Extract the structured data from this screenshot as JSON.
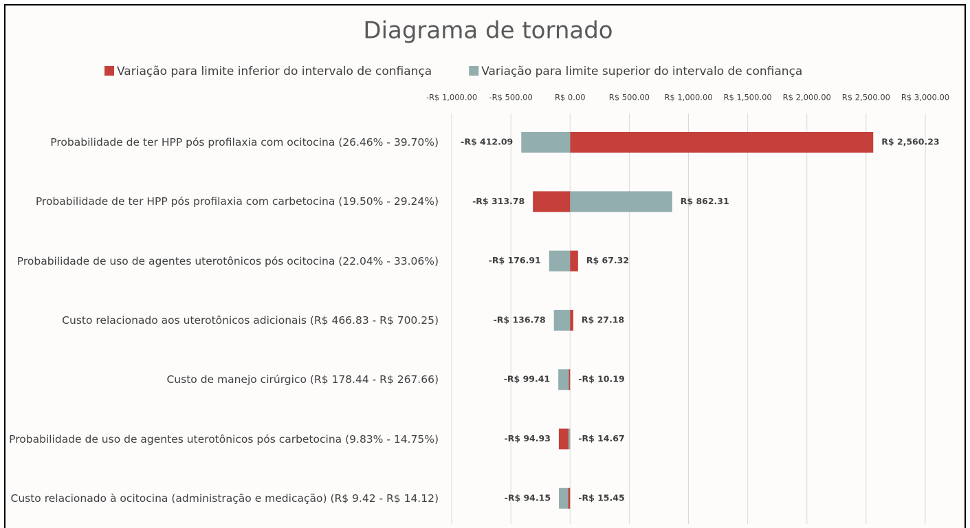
{
  "chart_data": {
    "type": "tornado",
    "title": "Diagrama de tornado",
    "categories": [
      "Probabilidade de ter HPP pós profilaxia com ocitocina (26.46% - 39.70%)",
      "Probabilidade de ter HPP pós profilaxia com carbetocina (19.50% - 29.24%)",
      "Probabilidade de uso de agentes uterotônicos pós ocitocina (22.04% - 33.06%)",
      "Custo relacionado aos uterotônicos adicionais (R$ 466.83 - R$ 700.25)",
      "Custo de manejo cirúrgico (R$ 178.44 - R$ 267.66)",
      "Probabilidade de uso de agentes uterotônicos pós carbetocina (9.83% - 14.75%)",
      "Custo relacionado à ocitocina (administração e medicação) (R$ 9.42 - R$ 14.12)"
    ],
    "series": [
      {
        "name": "Variação para limite inferior do intervalo de confiança",
        "color": "#c5403a",
        "values": [
          2560.23,
          -313.78,
          67.32,
          27.18,
          -10.19,
          -94.93,
          -15.45
        ],
        "value_labels": [
          "R$ 2,560.23",
          "-R$ 313.78",
          "R$ 67.32",
          "R$ 27.18",
          "-R$ 10.19",
          "-R$ 94.93",
          "-R$ 15.45"
        ]
      },
      {
        "name": "Variação para limite superior do intervalo de confiança",
        "color": "#93aeae",
        "values": [
          -412.09,
          862.31,
          -176.91,
          -136.78,
          -99.41,
          -14.67,
          -94.15
        ],
        "value_labels": [
          "-R$ 412.09",
          "R$ 862.31",
          "-R$ 176.91",
          "-R$ 136.78",
          "-R$ 99.41",
          "-R$ 14.67",
          "-R$ 94.15"
        ]
      }
    ],
    "xlim": [
      -1000,
      3000
    ],
    "xticks": [
      {
        "value": -1000,
        "label": "-R$ 1,000.00"
      },
      {
        "value": -500,
        "label": "-R$ 500.00"
      },
      {
        "value": 0,
        "label": "R$ 0.00"
      },
      {
        "value": 500,
        "label": "R$ 500.00"
      },
      {
        "value": 1000,
        "label": "R$ 1,000.00"
      },
      {
        "value": 1500,
        "label": "R$ 1,500.00"
      },
      {
        "value": 2000,
        "label": "R$ 2,000.00"
      },
      {
        "value": 2500,
        "label": "R$ 2,500.00"
      },
      {
        "value": 3000,
        "label": "R$ 3,000.00"
      }
    ],
    "grid": true
  }
}
